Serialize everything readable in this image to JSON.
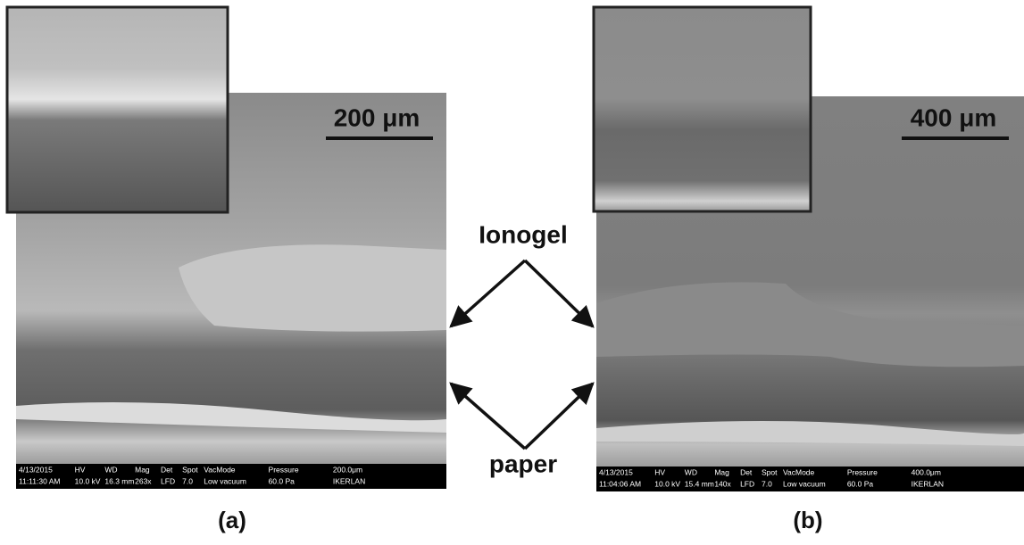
{
  "panels": [
    {
      "label": "(a)",
      "scale_bar": "200 μm",
      "info_bar": {
        "row1": [
          "4/13/2015",
          "HV",
          "WD",
          "Mag",
          "Det",
          "Spot",
          "VacMode",
          "Pressure",
          "200.0μm"
        ],
        "row2": [
          "11:11:30 AM",
          "10.0 kV",
          "16.3 mm",
          "263x",
          "LFD",
          "7.0",
          "Low vacuum",
          "60.0 Pa",
          "IKERLAN"
        ]
      }
    },
    {
      "label": "(b)",
      "scale_bar": "400 μm",
      "info_bar": {
        "row1": [
          "4/13/2015",
          "HV",
          "WD",
          "Mag",
          "Det",
          "Spot",
          "VacMode",
          "Pressure",
          "400.0μm"
        ],
        "row2": [
          "11:04:06 AM",
          "10.0 kV",
          "15.4 mm",
          "140x",
          "LFD",
          "7.0",
          "Low vacuum",
          "60.0 Pa",
          "IKERLAN"
        ]
      }
    }
  ],
  "annotations": {
    "top": "Ionogel",
    "bottom": "paper"
  }
}
